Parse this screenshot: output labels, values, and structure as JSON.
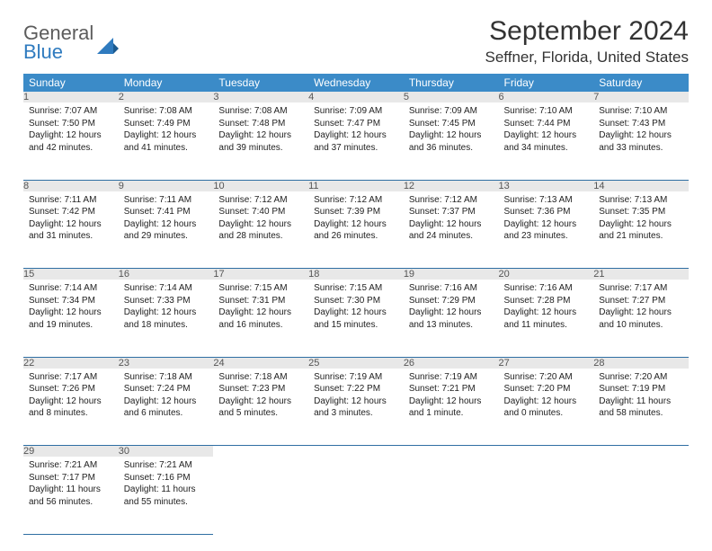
{
  "logo": {
    "general": "General",
    "blue": "Blue"
  },
  "title": "September 2024",
  "location": "Seffner, Florida, United States",
  "weekdays": [
    "Sunday",
    "Monday",
    "Tuesday",
    "Wednesday",
    "Thursday",
    "Friday",
    "Saturday"
  ],
  "colors": {
    "header_bg": "#3b8bc8",
    "daynum_bg": "#e8e8e8",
    "row_border": "#2f6fa3",
    "logo_blue": "#2f7bbf",
    "logo_gray": "#5c5c5c"
  },
  "weeks": [
    [
      {
        "n": "1",
        "sunrise": "Sunrise: 7:07 AM",
        "sunset": "Sunset: 7:50 PM",
        "day1": "Daylight: 12 hours",
        "day2": "and 42 minutes."
      },
      {
        "n": "2",
        "sunrise": "Sunrise: 7:08 AM",
        "sunset": "Sunset: 7:49 PM",
        "day1": "Daylight: 12 hours",
        "day2": "and 41 minutes."
      },
      {
        "n": "3",
        "sunrise": "Sunrise: 7:08 AM",
        "sunset": "Sunset: 7:48 PM",
        "day1": "Daylight: 12 hours",
        "day2": "and 39 minutes."
      },
      {
        "n": "4",
        "sunrise": "Sunrise: 7:09 AM",
        "sunset": "Sunset: 7:47 PM",
        "day1": "Daylight: 12 hours",
        "day2": "and 37 minutes."
      },
      {
        "n": "5",
        "sunrise": "Sunrise: 7:09 AM",
        "sunset": "Sunset: 7:45 PM",
        "day1": "Daylight: 12 hours",
        "day2": "and 36 minutes."
      },
      {
        "n": "6",
        "sunrise": "Sunrise: 7:10 AM",
        "sunset": "Sunset: 7:44 PM",
        "day1": "Daylight: 12 hours",
        "day2": "and 34 minutes."
      },
      {
        "n": "7",
        "sunrise": "Sunrise: 7:10 AM",
        "sunset": "Sunset: 7:43 PM",
        "day1": "Daylight: 12 hours",
        "day2": "and 33 minutes."
      }
    ],
    [
      {
        "n": "8",
        "sunrise": "Sunrise: 7:11 AM",
        "sunset": "Sunset: 7:42 PM",
        "day1": "Daylight: 12 hours",
        "day2": "and 31 minutes."
      },
      {
        "n": "9",
        "sunrise": "Sunrise: 7:11 AM",
        "sunset": "Sunset: 7:41 PM",
        "day1": "Daylight: 12 hours",
        "day2": "and 29 minutes."
      },
      {
        "n": "10",
        "sunrise": "Sunrise: 7:12 AM",
        "sunset": "Sunset: 7:40 PM",
        "day1": "Daylight: 12 hours",
        "day2": "and 28 minutes."
      },
      {
        "n": "11",
        "sunrise": "Sunrise: 7:12 AM",
        "sunset": "Sunset: 7:39 PM",
        "day1": "Daylight: 12 hours",
        "day2": "and 26 minutes."
      },
      {
        "n": "12",
        "sunrise": "Sunrise: 7:12 AM",
        "sunset": "Sunset: 7:37 PM",
        "day1": "Daylight: 12 hours",
        "day2": "and 24 minutes."
      },
      {
        "n": "13",
        "sunrise": "Sunrise: 7:13 AM",
        "sunset": "Sunset: 7:36 PM",
        "day1": "Daylight: 12 hours",
        "day2": "and 23 minutes."
      },
      {
        "n": "14",
        "sunrise": "Sunrise: 7:13 AM",
        "sunset": "Sunset: 7:35 PM",
        "day1": "Daylight: 12 hours",
        "day2": "and 21 minutes."
      }
    ],
    [
      {
        "n": "15",
        "sunrise": "Sunrise: 7:14 AM",
        "sunset": "Sunset: 7:34 PM",
        "day1": "Daylight: 12 hours",
        "day2": "and 19 minutes."
      },
      {
        "n": "16",
        "sunrise": "Sunrise: 7:14 AM",
        "sunset": "Sunset: 7:33 PM",
        "day1": "Daylight: 12 hours",
        "day2": "and 18 minutes."
      },
      {
        "n": "17",
        "sunrise": "Sunrise: 7:15 AM",
        "sunset": "Sunset: 7:31 PM",
        "day1": "Daylight: 12 hours",
        "day2": "and 16 minutes."
      },
      {
        "n": "18",
        "sunrise": "Sunrise: 7:15 AM",
        "sunset": "Sunset: 7:30 PM",
        "day1": "Daylight: 12 hours",
        "day2": "and 15 minutes."
      },
      {
        "n": "19",
        "sunrise": "Sunrise: 7:16 AM",
        "sunset": "Sunset: 7:29 PM",
        "day1": "Daylight: 12 hours",
        "day2": "and 13 minutes."
      },
      {
        "n": "20",
        "sunrise": "Sunrise: 7:16 AM",
        "sunset": "Sunset: 7:28 PM",
        "day1": "Daylight: 12 hours",
        "day2": "and 11 minutes."
      },
      {
        "n": "21",
        "sunrise": "Sunrise: 7:17 AM",
        "sunset": "Sunset: 7:27 PM",
        "day1": "Daylight: 12 hours",
        "day2": "and 10 minutes."
      }
    ],
    [
      {
        "n": "22",
        "sunrise": "Sunrise: 7:17 AM",
        "sunset": "Sunset: 7:26 PM",
        "day1": "Daylight: 12 hours",
        "day2": "and 8 minutes."
      },
      {
        "n": "23",
        "sunrise": "Sunrise: 7:18 AM",
        "sunset": "Sunset: 7:24 PM",
        "day1": "Daylight: 12 hours",
        "day2": "and 6 minutes."
      },
      {
        "n": "24",
        "sunrise": "Sunrise: 7:18 AM",
        "sunset": "Sunset: 7:23 PM",
        "day1": "Daylight: 12 hours",
        "day2": "and 5 minutes."
      },
      {
        "n": "25",
        "sunrise": "Sunrise: 7:19 AM",
        "sunset": "Sunset: 7:22 PM",
        "day1": "Daylight: 12 hours",
        "day2": "and 3 minutes."
      },
      {
        "n": "26",
        "sunrise": "Sunrise: 7:19 AM",
        "sunset": "Sunset: 7:21 PM",
        "day1": "Daylight: 12 hours",
        "day2": "and 1 minute."
      },
      {
        "n": "27",
        "sunrise": "Sunrise: 7:20 AM",
        "sunset": "Sunset: 7:20 PM",
        "day1": "Daylight: 12 hours",
        "day2": "and 0 minutes."
      },
      {
        "n": "28",
        "sunrise": "Sunrise: 7:20 AM",
        "sunset": "Sunset: 7:19 PM",
        "day1": "Daylight: 11 hours",
        "day2": "and 58 minutes."
      }
    ],
    [
      {
        "n": "29",
        "sunrise": "Sunrise: 7:21 AM",
        "sunset": "Sunset: 7:17 PM",
        "day1": "Daylight: 11 hours",
        "day2": "and 56 minutes."
      },
      {
        "n": "30",
        "sunrise": "Sunrise: 7:21 AM",
        "sunset": "Sunset: 7:16 PM",
        "day1": "Daylight: 11 hours",
        "day2": "and 55 minutes."
      },
      null,
      null,
      null,
      null,
      null
    ]
  ]
}
